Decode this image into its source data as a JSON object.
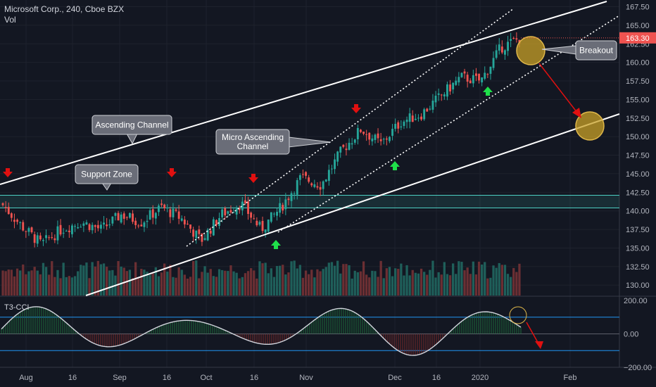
{
  "header": {
    "title": "Microsoft Corp., 240, Cboe BZX",
    "volume_label": "Vol"
  },
  "indicator": {
    "label": "T3-CCI",
    "axis_ticks": [
      "200.00",
      "0.00",
      "−200.00"
    ]
  },
  "colors": {
    "background": "#131722",
    "up": "#26a69a",
    "down": "#ef5350",
    "grid": "#1e222d",
    "axis_text": "#b2b5be",
    "trendline": "#ffffff",
    "support_zone": "#4dd0c4",
    "price_tag": "#ef5350",
    "circle_fill": "#c9a227",
    "arrow_down": "#e01010",
    "arrow_up": "#1fe04a",
    "cci_line": "#d1d4dc",
    "cci_ref": "#2196f3"
  },
  "chart_data": {
    "type": "candlestick",
    "symbol": "Microsoft Corp., 240, Cboe BZX",
    "last_price_label": "163.30",
    "y_ticks": [
      "167.50",
      "165.00",
      "162.50",
      "160.00",
      "157.50",
      "155.00",
      "152.50",
      "150.00",
      "147.50",
      "145.00",
      "142.50",
      "140.00",
      "137.50",
      "135.00",
      "132.50",
      "130.00"
    ],
    "ylim": [
      128.6,
      168.4
    ],
    "x_ticks": [
      "Aug",
      "16",
      "Sep",
      "16",
      "Oct",
      "16",
      "Nov",
      "Dec",
      "16",
      "2020",
      "Feb"
    ],
    "price_path": [
      {
        "t": "Aug",
        "price": 141.0
      },
      {
        "t": "Aug",
        "price": 138.0
      },
      {
        "t": "Aug",
        "price": 135.5
      },
      {
        "t": "16",
        "price": 137.5
      },
      {
        "t": "16",
        "price": 138.5
      },
      {
        "t": "Sep",
        "price": 137.5
      },
      {
        "t": "Sep",
        "price": 139.5
      },
      {
        "t": "16",
        "price": 138.5
      },
      {
        "t": "16",
        "price": 140.5
      },
      {
        "t": "Oct",
        "price": 139.0
      },
      {
        "t": "Oct",
        "price": 136.0
      },
      {
        "t": "16",
        "price": 139.5
      },
      {
        "t": "16",
        "price": 141.0
      },
      {
        "t": "16",
        "price": 137.5
      },
      {
        "t": "Nov",
        "price": 140.5
      },
      {
        "t": "Nov",
        "price": 144.5
      },
      {
        "t": "Nov",
        "price": 143.5
      },
      {
        "t": "Nov",
        "price": 148.0
      },
      {
        "t": "Dec",
        "price": 151.0
      },
      {
        "t": "Dec",
        "price": 149.0
      },
      {
        "t": "Dec",
        "price": 152.0
      },
      {
        "t": "16",
        "price": 153.0
      },
      {
        "t": "16",
        "price": 155.5
      },
      {
        "t": "2020",
        "price": 158.0
      },
      {
        "t": "2020",
        "price": 157.5
      },
      {
        "t": "2020",
        "price": 162.0
      },
      {
        "t": "2020",
        "price": 163.3
      }
    ],
    "support_zone": [
      140.4,
      142.1
    ],
    "annotations": [
      {
        "text": "Ascending Channel"
      },
      {
        "text": "Support Zone"
      },
      {
        "text": "Micro Ascending Channel"
      },
      {
        "text": "Breakout"
      }
    ],
    "volume": {
      "label": "Vol"
    },
    "cci": {
      "label": "T3-CCI",
      "ylim": [
        -200,
        200
      ],
      "levels": [
        100,
        0,
        -100
      ]
    }
  }
}
